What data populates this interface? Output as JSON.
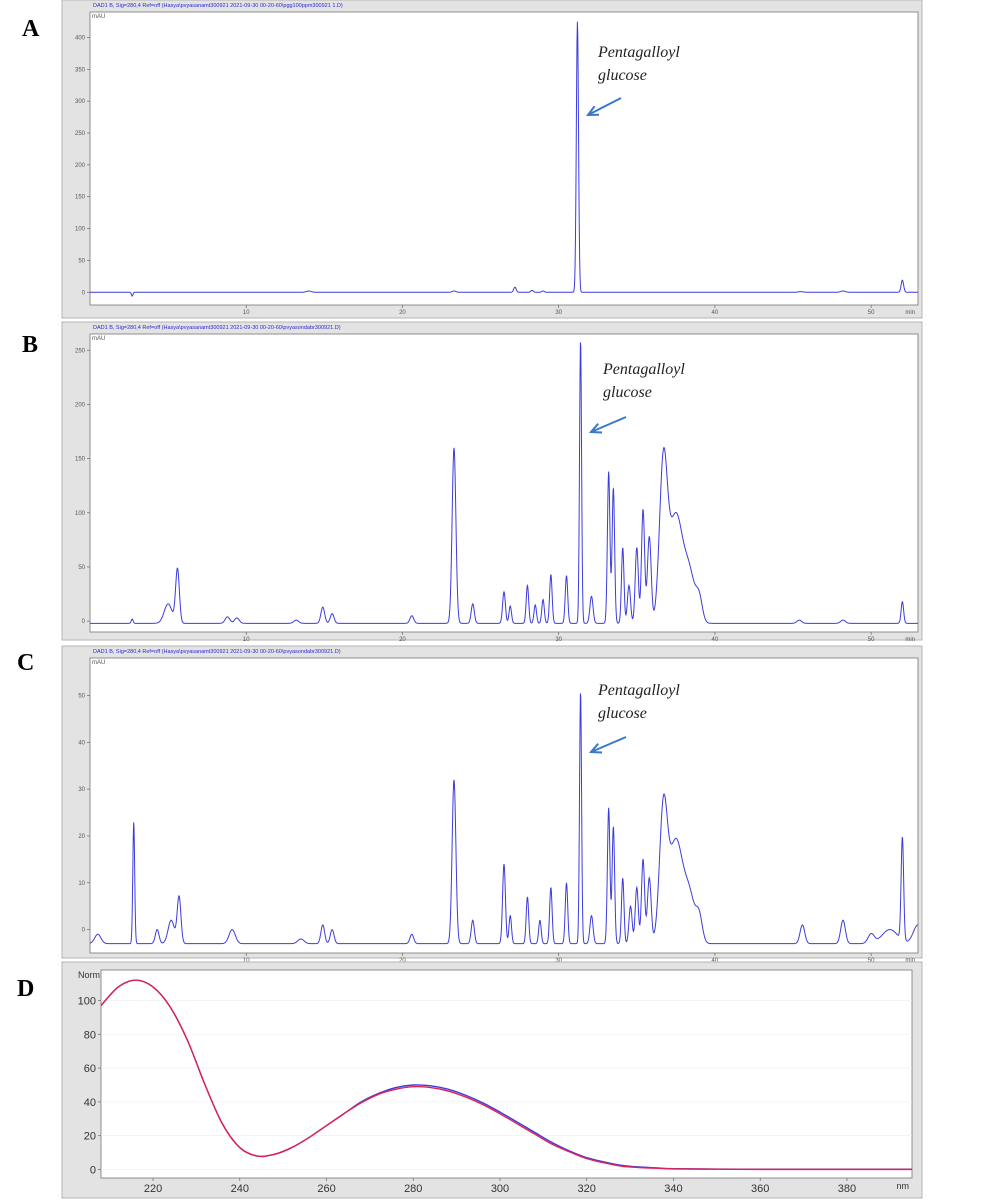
{
  "chart_data": [
    {
      "panel": "A",
      "type": "line",
      "header": "DAD1 B, Sig=280,4 Ref=off (Hasya\\pvyasanamt300921 2021-09-30 00-20-60\\pgg100ppm300921 1.D)",
      "ylabel": "mAU",
      "xunit": "min",
      "xlim": [
        0,
        53
      ],
      "ylim": [
        -20,
        440
      ],
      "yticks": [
        0,
        50,
        100,
        150,
        200,
        250,
        300,
        350,
        400
      ],
      "xticks": [
        10,
        20,
        30,
        40,
        50
      ],
      "annotation": [
        "Pentagalloyl",
        "glucose"
      ],
      "color": "#3c3cdc",
      "baseline": 0,
      "peaks": [
        {
          "x": 2.7,
          "y": -6,
          "w": 0.05
        },
        {
          "x": 14.0,
          "y": 2,
          "w": 0.15
        },
        {
          "x": 23.3,
          "y": 2,
          "w": 0.12
        },
        {
          "x": 27.2,
          "y": 8,
          "w": 0.08
        },
        {
          "x": 28.3,
          "y": 3,
          "w": 0.08
        },
        {
          "x": 29.0,
          "y": 2,
          "w": 0.08
        },
        {
          "x": 31.2,
          "y": 425,
          "w": 0.07
        },
        {
          "x": 45.5,
          "y": 1,
          "w": 0.15
        },
        {
          "x": 48.2,
          "y": 2,
          "w": 0.15
        },
        {
          "x": 52.0,
          "y": 19,
          "w": 0.08
        }
      ]
    },
    {
      "panel": "B",
      "type": "line",
      "header": "DAD1 B, Sig=280,4 Ref=off (Hasya\\pvyasanamt300921 2021-09-30 00-20-60\\pvyasondabr300921.D)",
      "ylabel": "mAU",
      "xunit": "min",
      "xlim": [
        0,
        53
      ],
      "ylim": [
        -10,
        265
      ],
      "yticks": [
        0,
        50,
        100,
        150,
        200,
        250
      ],
      "xticks": [
        10,
        20,
        30,
        40,
        50
      ],
      "annotation": [
        "Pentagalloyl",
        "glucose"
      ],
      "color": "#3c3cdc",
      "baseline": -2,
      "peaks": [
        {
          "x": 2.7,
          "y": 4,
          "w": 0.06
        },
        {
          "x": 5.0,
          "y": 18,
          "w": 0.25
        },
        {
          "x": 5.6,
          "y": 50,
          "w": 0.12
        },
        {
          "x": 8.8,
          "y": 6,
          "w": 0.15
        },
        {
          "x": 9.4,
          "y": 5,
          "w": 0.15
        },
        {
          "x": 13.2,
          "y": 3,
          "w": 0.15
        },
        {
          "x": 14.9,
          "y": 15,
          "w": 0.12
        },
        {
          "x": 15.5,
          "y": 9,
          "w": 0.12
        },
        {
          "x": 20.6,
          "y": 7,
          "w": 0.12
        },
        {
          "x": 23.3,
          "y": 162,
          "w": 0.12
        },
        {
          "x": 24.5,
          "y": 18,
          "w": 0.1
        },
        {
          "x": 26.5,
          "y": 29,
          "w": 0.09
        },
        {
          "x": 26.9,
          "y": 16,
          "w": 0.08
        },
        {
          "x": 28.0,
          "y": 35,
          "w": 0.08
        },
        {
          "x": 28.5,
          "y": 17,
          "w": 0.08
        },
        {
          "x": 29.0,
          "y": 22,
          "w": 0.08
        },
        {
          "x": 29.5,
          "y": 45,
          "w": 0.08
        },
        {
          "x": 30.5,
          "y": 44,
          "w": 0.08
        },
        {
          "x": 31.4,
          "y": 262,
          "w": 0.065
        },
        {
          "x": 32.1,
          "y": 25,
          "w": 0.1
        },
        {
          "x": 33.2,
          "y": 140,
          "w": 0.08
        },
        {
          "x": 33.5,
          "y": 125,
          "w": 0.08
        },
        {
          "x": 34.1,
          "y": 70,
          "w": 0.08
        },
        {
          "x": 34.5,
          "y": 35,
          "w": 0.1
        },
        {
          "x": 35.0,
          "y": 70,
          "w": 0.1
        },
        {
          "x": 35.4,
          "y": 105,
          "w": 0.1
        },
        {
          "x": 35.8,
          "y": 80,
          "w": 0.12
        },
        {
          "x": 36.7,
          "y": 140,
          "w": 0.25
        },
        {
          "x": 37.5,
          "y": 100,
          "w": 0.45
        },
        {
          "x": 38.4,
          "y": 40,
          "w": 0.35
        },
        {
          "x": 39.0,
          "y": 20,
          "w": 0.2
        },
        {
          "x": 45.4,
          "y": 3,
          "w": 0.15
        },
        {
          "x": 48.2,
          "y": 3,
          "w": 0.15
        },
        {
          "x": 52.0,
          "y": 20,
          "w": 0.08
        }
      ]
    },
    {
      "panel": "C",
      "type": "line",
      "header": "DAD1 B, Sig=280,4 Ref=off (Hasya\\pvyasanamt300921 2021-09-30 00-20-60\\pvyasondabr300921.D)",
      "ylabel": "mAU",
      "xunit": "min",
      "xlim": [
        0,
        53
      ],
      "ylim": [
        -5,
        58
      ],
      "yticks": [
        0,
        10,
        20,
        30,
        40,
        50
      ],
      "xticks": [
        10,
        20,
        30,
        40,
        50
      ],
      "annotation": [
        "Pentagalloyl",
        "glucose"
      ],
      "color": "#3c3cdc",
      "baseline": -3,
      "peaks": [
        {
          "x": 0.5,
          "y": 2,
          "w": 0.2
        },
        {
          "x": 2.8,
          "y": 26,
          "w": 0.06
        },
        {
          "x": 4.3,
          "y": 3,
          "w": 0.12
        },
        {
          "x": 5.2,
          "y": 5,
          "w": 0.2
        },
        {
          "x": 5.7,
          "y": 10,
          "w": 0.12
        },
        {
          "x": 9.1,
          "y": 3,
          "w": 0.2
        },
        {
          "x": 13.5,
          "y": 1,
          "w": 0.2
        },
        {
          "x": 14.9,
          "y": 4,
          "w": 0.12
        },
        {
          "x": 15.5,
          "y": 3,
          "w": 0.12
        },
        {
          "x": 20.6,
          "y": 2,
          "w": 0.12
        },
        {
          "x": 23.3,
          "y": 35,
          "w": 0.12
        },
        {
          "x": 24.5,
          "y": 5,
          "w": 0.1
        },
        {
          "x": 26.5,
          "y": 17,
          "w": 0.09
        },
        {
          "x": 26.9,
          "y": 6,
          "w": 0.08
        },
        {
          "x": 28.0,
          "y": 10,
          "w": 0.08
        },
        {
          "x": 28.8,
          "y": 5,
          "w": 0.08
        },
        {
          "x": 29.5,
          "y": 12,
          "w": 0.08
        },
        {
          "x": 30.5,
          "y": 13,
          "w": 0.08
        },
        {
          "x": 31.4,
          "y": 54,
          "w": 0.065
        },
        {
          "x": 32.1,
          "y": 6,
          "w": 0.1
        },
        {
          "x": 33.2,
          "y": 29,
          "w": 0.08
        },
        {
          "x": 33.5,
          "y": 25,
          "w": 0.08
        },
        {
          "x": 34.1,
          "y": 14,
          "w": 0.08
        },
        {
          "x": 34.6,
          "y": 8,
          "w": 0.1
        },
        {
          "x": 35.0,
          "y": 12,
          "w": 0.1
        },
        {
          "x": 35.4,
          "y": 18,
          "w": 0.1
        },
        {
          "x": 35.8,
          "y": 14,
          "w": 0.12
        },
        {
          "x": 36.7,
          "y": 27,
          "w": 0.25
        },
        {
          "x": 37.5,
          "y": 22,
          "w": 0.45
        },
        {
          "x": 38.4,
          "y": 9,
          "w": 0.35
        },
        {
          "x": 39.0,
          "y": 5,
          "w": 0.2
        },
        {
          "x": 45.6,
          "y": 4,
          "w": 0.15
        },
        {
          "x": 48.2,
          "y": 5,
          "w": 0.15
        },
        {
          "x": 50.0,
          "y": 2,
          "w": 0.2
        },
        {
          "x": 51.2,
          "y": 3,
          "w": 0.5
        },
        {
          "x": 52.0,
          "y": 22,
          "w": 0.08
        },
        {
          "x": 53.0,
          "y": 4,
          "w": 0.3
        }
      ]
    },
    {
      "panel": "D",
      "type": "line",
      "ylabel": "Norm",
      "xunit": "nm",
      "xlim": [
        208,
        395
      ],
      "ylim": [
        -5,
        118
      ],
      "yticks": [
        0,
        20,
        40,
        60,
        80,
        100
      ],
      "xticks": [
        220,
        240,
        260,
        280,
        300,
        320,
        340,
        360,
        380
      ],
      "series": [
        {
          "color": "#3c3cdc",
          "x": [
            208,
            212,
            216,
            220,
            224,
            228,
            232,
            236,
            240,
            244,
            248,
            252,
            256,
            260,
            264,
            268,
            272,
            276,
            280,
            284,
            288,
            292,
            296,
            300,
            304,
            308,
            312,
            316,
            320,
            324,
            328,
            332,
            336,
            340,
            350,
            360,
            370,
            380,
            390,
            395
          ],
          "y": [
            97,
            108,
            112,
            108,
            96,
            76,
            50,
            27,
            13,
            8,
            9,
            13,
            19,
            26,
            33,
            40,
            45,
            48.5,
            50,
            49.5,
            47.5,
            44,
            39.5,
            34,
            28,
            22,
            16,
            11,
            7,
            4.5,
            2.5,
            1.5,
            1,
            0.5,
            0.3,
            0.2,
            0.2,
            0.2,
            0.2,
            0.2
          ]
        },
        {
          "color": "#e0205a",
          "x": [
            208,
            212,
            216,
            220,
            224,
            228,
            232,
            236,
            240,
            244,
            248,
            252,
            256,
            260,
            264,
            268,
            272,
            276,
            280,
            284,
            288,
            292,
            296,
            300,
            304,
            308,
            312,
            316,
            320,
            324,
            328,
            332,
            336,
            340,
            350,
            360,
            370,
            380,
            390,
            395
          ],
          "y": [
            97,
            108,
            112,
            108,
            96,
            76,
            50,
            27,
            13,
            8,
            9,
            13,
            19,
            26,
            33,
            39.5,
            44.5,
            47.5,
            49,
            48.5,
            46.5,
            43,
            38.5,
            33,
            27,
            21,
            15,
            10.5,
            6.5,
            4,
            2,
            1.2,
            0.8,
            0.4,
            0.2,
            0.1,
            0.1,
            0.1,
            0.1,
            0.1
          ]
        }
      ]
    }
  ]
}
